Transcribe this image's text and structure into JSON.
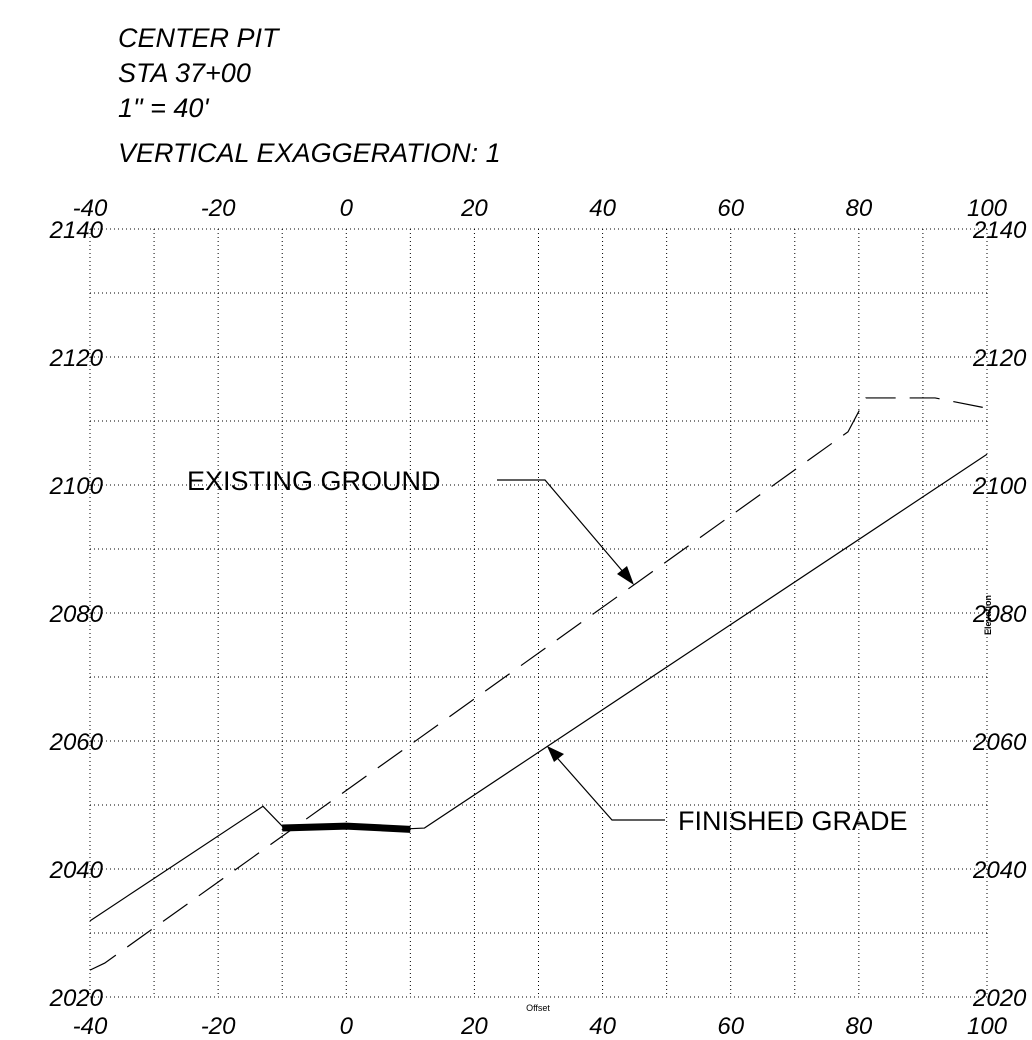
{
  "chart_data": {
    "type": "line",
    "title_lines": [
      "CENTER PIT",
      "STA 37+00",
      "1\" = 40'",
      "VERTICAL EXAGGERATION: 1"
    ],
    "xlabel": "Offset",
    "ylabel": "Elevation",
    "xlim": [
      -40,
      100
    ],
    "ylim": [
      2020,
      2140
    ],
    "xticks": [
      -40,
      -20,
      0,
      20,
      40,
      60,
      80,
      100
    ],
    "yticks": [
      2020,
      2040,
      2060,
      2080,
      2100,
      2120,
      2140
    ],
    "x_minor_grid": [
      -30,
      -10,
      10,
      30,
      50,
      70,
      90
    ],
    "y_minor_grid": [
      2030,
      2050,
      2070,
      2090,
      2110,
      2130
    ],
    "grid": true,
    "series": [
      {
        "name": "EXISTING GROUND",
        "color": "#000000",
        "dashed": true,
        "x": [
          -40,
          -37.7,
          78.3,
          81.1,
          91.9,
          100
        ],
        "values": [
          2024.2,
          2025.3,
          2108.3,
          2113.6,
          2113.6,
          2112
        ]
      },
      {
        "name": "FINISHED GRADE",
        "color": "#000000",
        "dashed": false,
        "x": [
          -40,
          -13,
          -9.9,
          10,
          12.2,
          100
        ],
        "values": [
          2031.9,
          2049.8,
          2046.6,
          2046.3,
          2046.4,
          2104.8
        ]
      },
      {
        "color": "#000000",
        "dashed": false,
        "line_width": 7,
        "x": [
          -10,
          0,
          10
        ],
        "values": [
          2046.4,
          2046.7,
          2046.2
        ]
      }
    ]
  }
}
